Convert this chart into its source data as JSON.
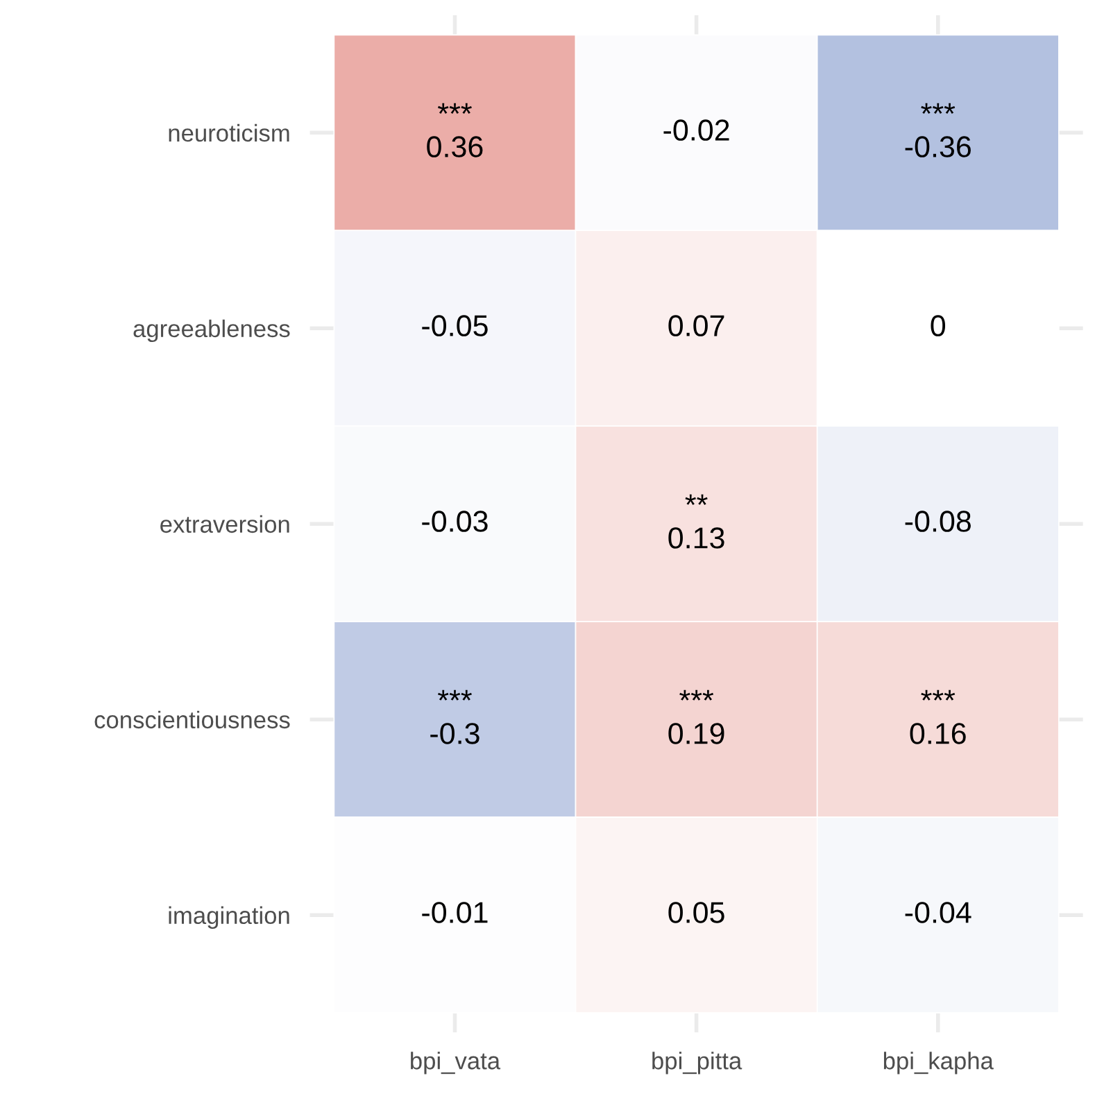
{
  "chart_data": {
    "type": "heatmap",
    "categories": [
      "bpi_vata",
      "bpi_pitta",
      "bpi_kapha"
    ],
    "y_categories": [
      "neuroticism",
      "agreeableness",
      "extraversion",
      "conscientiousness",
      "imagination"
    ],
    "cells": [
      [
        0.36,
        -0.02,
        -0.36
      ],
      [
        -0.05,
        0.07,
        0
      ],
      [
        -0.03,
        0.13,
        -0.08
      ],
      [
        -0.3,
        0.19,
        0.16
      ],
      [
        -0.01,
        0.05,
        -0.04
      ]
    ],
    "cell_labels": [
      [
        "***\n0.36",
        "-0.02",
        "***\n-0.36"
      ],
      [
        "-0.05",
        "0.07",
        "0"
      ],
      [
        "-0.03",
        "**\n0.13",
        "-0.08"
      ],
      [
        "***\n-0.3",
        "***\n0.19",
        "***\n0.16"
      ],
      [
        "-0.01",
        "0.05",
        "-0.04"
      ]
    ],
    "colors": [
      "#b3c1e0",
      "#ffffff",
      "#ebada8"
    ],
    "grid": true
  }
}
